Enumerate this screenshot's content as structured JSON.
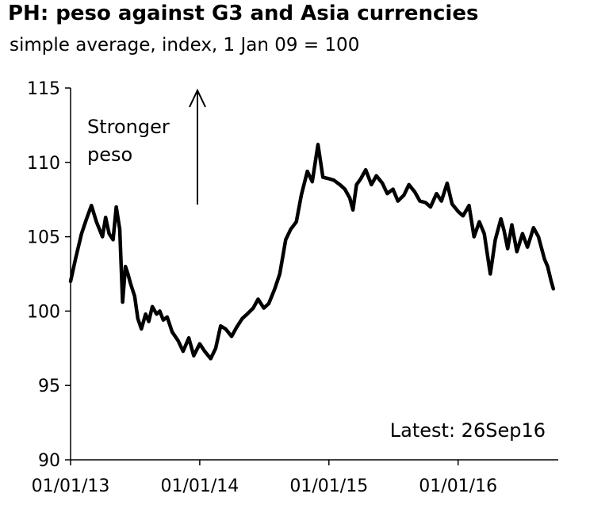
{
  "chart_data": {
    "type": "line",
    "title": "PH: peso against G3 and Asia currencies",
    "subtitle": "simple average, index, 1 Jan 09 = 100",
    "xlabel": "",
    "ylabel": "",
    "ylim": [
      90,
      115
    ],
    "xlim": [
      "2013-01-01",
      "2016-10-10"
    ],
    "y_ticks": [
      90,
      95,
      100,
      105,
      110,
      115
    ],
    "x_ticks": [
      "01/01/13",
      "01/01/14",
      "01/01/15",
      "01/01/16"
    ],
    "grid": false,
    "legend": "none",
    "line_color": "#000000",
    "annotations": {
      "arrow_label": [
        "Stronger",
        "peso"
      ],
      "latest": "Latest: 26Sep16"
    },
    "series": [
      {
        "x": [
          "2013-01-01",
          "2013-01-15",
          "2013-02-01",
          "2013-02-15",
          "2013-03-01",
          "2013-03-15",
          "2013-04-01",
          "2013-04-10",
          "2013-04-20",
          "2013-05-01",
          "2013-05-10",
          "2013-05-20",
          "2013-05-28",
          "2013-06-05",
          "2013-06-12",
          "2013-06-20",
          "2013-07-01",
          "2013-07-10",
          "2013-07-20",
          "2013-08-01",
          "2013-08-10",
          "2013-08-20",
          "2013-09-01",
          "2013-09-10",
          "2013-09-20",
          "2013-10-01",
          "2013-10-15",
          "2013-11-01",
          "2013-11-15",
          "2013-12-01",
          "2013-12-15",
          "2014-01-01",
          "2014-01-15",
          "2014-02-01",
          "2014-02-15",
          "2014-03-01",
          "2014-03-15",
          "2014-04-01",
          "2014-04-15",
          "2014-05-01",
          "2014-05-15",
          "2014-06-01",
          "2014-06-15",
          "2014-07-01",
          "2014-07-15",
          "2014-08-01",
          "2014-08-15",
          "2014-09-01",
          "2014-09-15",
          "2014-10-01",
          "2014-10-15",
          "2014-11-01",
          "2014-11-15",
          "2014-12-01",
          "2014-12-15",
          "2015-01-01",
          "2015-01-15",
          "2015-02-01",
          "2015-02-15",
          "2015-03-01",
          "2015-03-10",
          "2015-03-20",
          "2015-04-01",
          "2015-04-15",
          "2015-05-01",
          "2015-05-15",
          "2015-06-01",
          "2015-06-15",
          "2015-07-01",
          "2015-07-15",
          "2015-08-01",
          "2015-08-15",
          "2015-09-01",
          "2015-09-15",
          "2015-10-01",
          "2015-10-15",
          "2015-11-01",
          "2015-11-15",
          "2015-12-01",
          "2015-12-15",
          "2016-01-01",
          "2016-01-15",
          "2016-02-01",
          "2016-02-15",
          "2016-03-01",
          "2016-03-15",
          "2016-04-01",
          "2016-04-15",
          "2016-05-01",
          "2016-05-10",
          "2016-05-20",
          "2016-06-01",
          "2016-06-15",
          "2016-07-01",
          "2016-07-15",
          "2016-08-01",
          "2016-08-15",
          "2016-09-01",
          "2016-09-10",
          "2016-09-20",
          "2016-09-26"
        ],
        "values": [
          102.0,
          103.5,
          105.2,
          106.2,
          107.1,
          106.0,
          105.0,
          106.3,
          105.2,
          104.8,
          107.0,
          105.5,
          100.6,
          103.0,
          102.5,
          101.8,
          101.0,
          99.5,
          98.8,
          99.8,
          99.3,
          100.3,
          99.8,
          100.0,
          99.4,
          99.6,
          98.6,
          98.0,
          97.3,
          98.2,
          97.0,
          97.8,
          97.3,
          96.8,
          97.5,
          99.0,
          98.8,
          98.3,
          98.9,
          99.5,
          99.8,
          100.2,
          100.8,
          100.2,
          100.5,
          101.5,
          102.5,
          104.8,
          105.5,
          106.0,
          107.8,
          109.4,
          108.7,
          111.2,
          109.0,
          108.9,
          108.8,
          108.5,
          108.2,
          107.6,
          106.8,
          108.5,
          108.9,
          109.5,
          108.5,
          109.1,
          108.6,
          107.9,
          108.2,
          107.4,
          107.8,
          108.5,
          108.0,
          107.4,
          107.3,
          107.0,
          107.9,
          107.4,
          108.6,
          107.2,
          106.7,
          106.4,
          107.1,
          105.0,
          106.0,
          105.2,
          102.5,
          104.8,
          106.2,
          105.4,
          104.2,
          105.8,
          104.0,
          105.2,
          104.3,
          105.6,
          105.0,
          103.5,
          103.0,
          102.0,
          101.5
        ]
      }
    ]
  }
}
